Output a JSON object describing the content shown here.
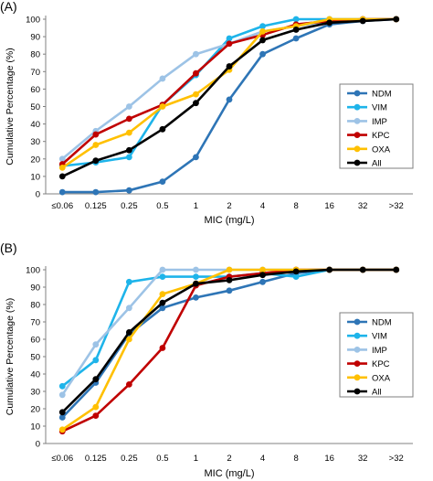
{
  "chart_data": [
    {
      "type": "line",
      "panel_label": "(A)",
      "categories": [
        "≤0.06",
        "0.125",
        "0.25",
        "0.5",
        "1",
        "2",
        "4",
        "8",
        "16",
        "32",
        ">32"
      ],
      "xlabel": "MIC (mg/L)",
      "ylabel": "Cumulative Percentage (%)",
      "ylim": [
        0,
        100
      ],
      "yticks": [
        0,
        10,
        20,
        30,
        40,
        50,
        60,
        70,
        80,
        90,
        100
      ],
      "grid": false,
      "legend_position": "right",
      "series": [
        {
          "name": "NDM",
          "color": "#2e75b6",
          "values": [
            1,
            1,
            2,
            7,
            21,
            54,
            80,
            89,
            97,
            99,
            100
          ]
        },
        {
          "name": "VIM",
          "color": "#1eb4ea",
          "values": [
            16,
            18,
            21,
            51,
            68,
            89,
            96,
            100,
            100,
            100,
            100
          ]
        },
        {
          "name": "IMP",
          "color": "#9dc3e6",
          "values": [
            20,
            36,
            50,
            66,
            80,
            86,
            93,
            96,
            99,
            100,
            100
          ]
        },
        {
          "name": "KPC",
          "color": "#c00000",
          "values": [
            17,
            34,
            43,
            51,
            69,
            86,
            91,
            97,
            99,
            100,
            100
          ]
        },
        {
          "name": "OXA",
          "color": "#ffc000",
          "values": [
            15,
            28,
            35,
            50,
            57,
            71,
            93,
            96,
            100,
            100,
            100
          ]
        },
        {
          "name": "All",
          "color": "#000000",
          "values": [
            10,
            19,
            25,
            37,
            52,
            73,
            88,
            94,
            98,
            99,
            100
          ]
        }
      ]
    },
    {
      "type": "line",
      "panel_label": "(B)",
      "categories": [
        "≤0.06",
        "0.125",
        "0.25",
        "0.5",
        "1",
        "2",
        "4",
        "8",
        "16",
        "32",
        ">32"
      ],
      "xlabel": "MIC (mg/L)",
      "ylabel": "Cumulative Percentage (%)",
      "ylim": [
        0,
        100
      ],
      "yticks": [
        0,
        10,
        20,
        30,
        40,
        50,
        60,
        70,
        80,
        90,
        100
      ],
      "grid": false,
      "legend_position": "right",
      "series": [
        {
          "name": "NDM",
          "color": "#2e75b6",
          "values": [
            15,
            35,
            63,
            78,
            84,
            88,
            93,
            98,
            100,
            100,
            100
          ]
        },
        {
          "name": "VIM",
          "color": "#1eb4ea",
          "values": [
            33,
            48,
            93,
            96,
            96,
            96,
            98,
            96,
            100,
            100,
            100
          ]
        },
        {
          "name": "IMP",
          "color": "#9dc3e6",
          "values": [
            28,
            57,
            78,
            100,
            100,
            100,
            100,
            100,
            100,
            100,
            100
          ]
        },
        {
          "name": "KPC",
          "color": "#c00000",
          "values": [
            7,
            16,
            34,
            55,
            91,
            96,
            98,
            100,
            100,
            100,
            100
          ]
        },
        {
          "name": "OXA",
          "color": "#ffc000",
          "values": [
            8,
            21,
            60,
            86,
            92,
            100,
            100,
            100,
            100,
            100,
            100
          ]
        },
        {
          "name": "All",
          "color": "#000000",
          "values": [
            18,
            37,
            64,
            81,
            92,
            94,
            97,
            99,
            100,
            100,
            100
          ]
        }
      ]
    }
  ]
}
